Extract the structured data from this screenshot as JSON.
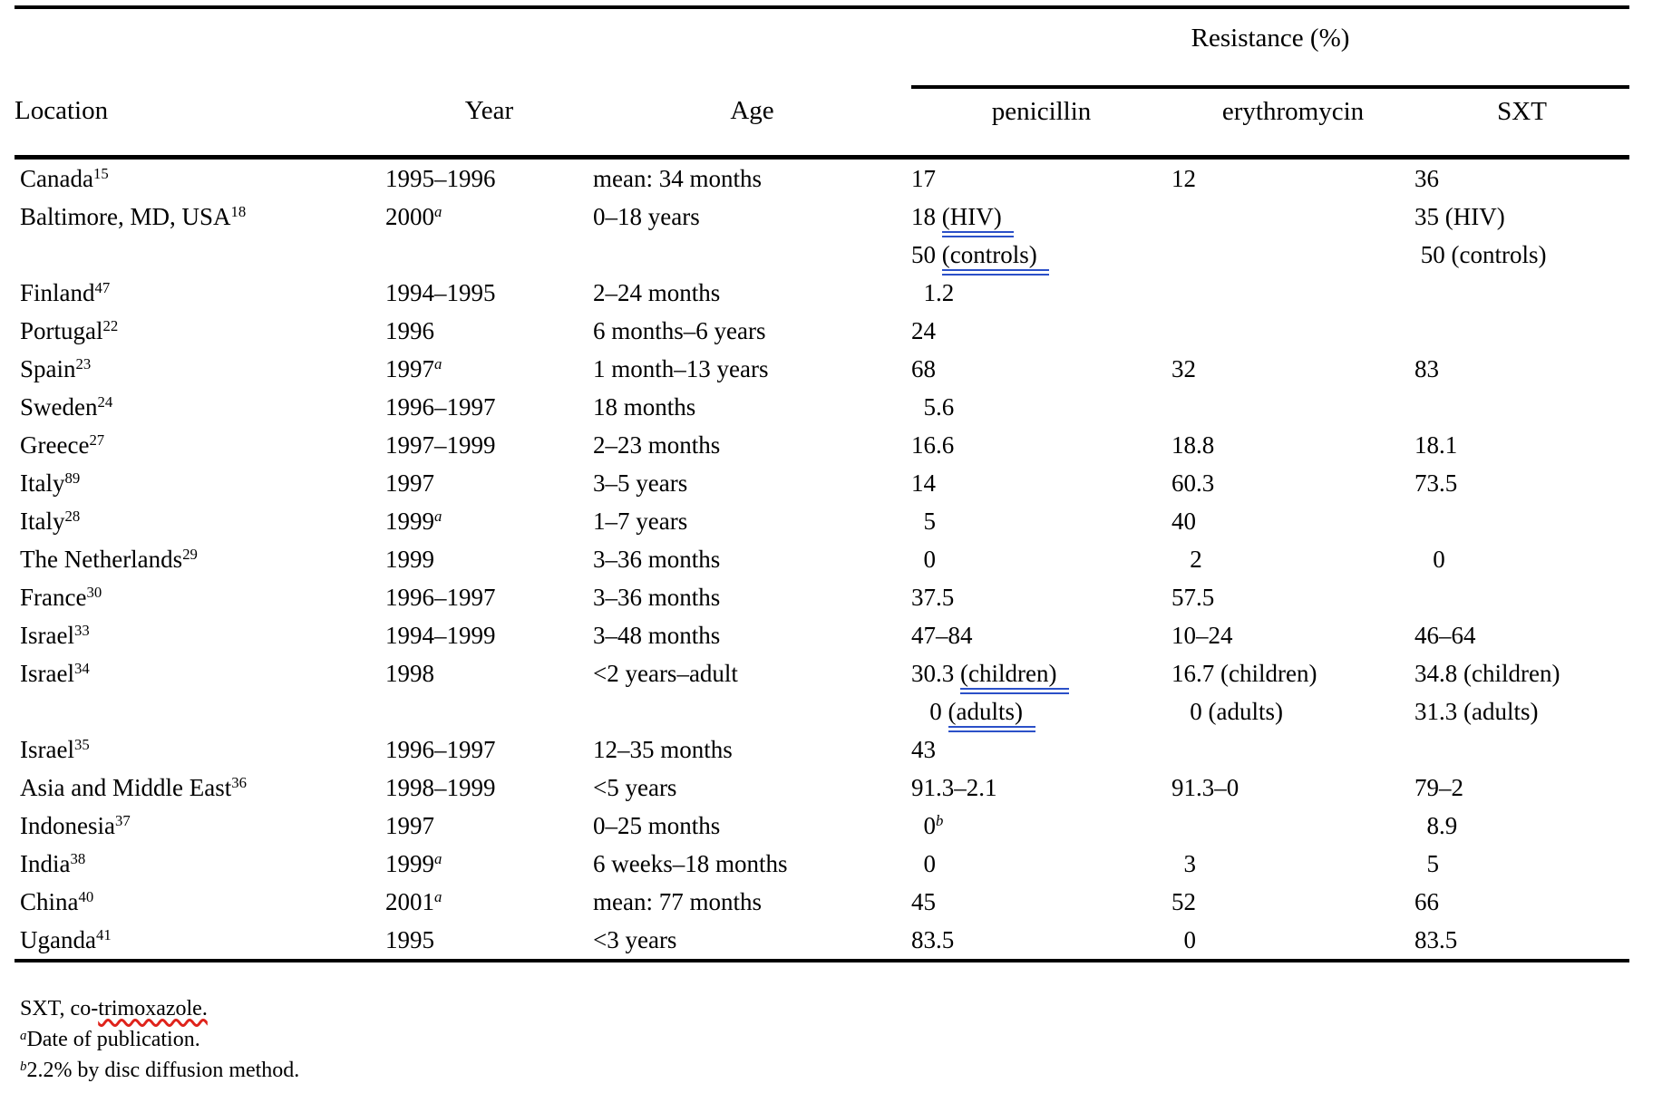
{
  "colors": {
    "grammar_underline_blue": "#2b50c8",
    "spellcheck_wavy_red": "#df231b",
    "text": "#000000",
    "rule": "#000000"
  },
  "table": {
    "spanner": "Resistance (%)",
    "columns": [
      "Location",
      "Year",
      "Age",
      "penicillin",
      "erythromycin",
      "SXT"
    ],
    "rows": [
      {
        "loc": {
          "name": "Canada",
          "ref": "15"
        },
        "year": {
          "text": "1995–1996"
        },
        "age": "mean: 34 months",
        "pen": [
          {
            "pre": "17"
          }
        ],
        "ery": [
          {
            "pre": "12"
          }
        ],
        "sxt": [
          {
            "pre": "36"
          }
        ]
      },
      {
        "loc": {
          "name": "Baltimore, MD, USA",
          "ref": "18"
        },
        "year": {
          "text": "2000",
          "sup": "a"
        },
        "age": "0–18 years",
        "pen": [
          {
            "pre": "18 ",
            "u": "(HIV)"
          },
          {
            "pre": "50 ",
            "u": "(controls)"
          }
        ],
        "ery": [],
        "sxt": [
          {
            "pre": "35 (HIV)"
          },
          {
            "pre": " 50 (controls)"
          }
        ]
      },
      {
        "loc": {
          "name": "Finland",
          "ref": "47"
        },
        "year": {
          "text": "1994–1995"
        },
        "age": "2–24 months",
        "pen": [
          {
            "pre": "  1.2"
          }
        ],
        "ery": [],
        "sxt": []
      },
      {
        "loc": {
          "name": "Portugal",
          "ref": "22"
        },
        "year": {
          "text": "1996"
        },
        "age": "6 months–6 years",
        "pen": [
          {
            "pre": "24"
          }
        ],
        "ery": [],
        "sxt": []
      },
      {
        "loc": {
          "name": "Spain",
          "ref": "23"
        },
        "year": {
          "text": "1997",
          "sup": "a"
        },
        "age": "1 month–13 years",
        "pen": [
          {
            "pre": "68"
          }
        ],
        "ery": [
          {
            "pre": "32"
          }
        ],
        "sxt": [
          {
            "pre": "83"
          }
        ]
      },
      {
        "loc": {
          "name": "Sweden",
          "ref": "24"
        },
        "year": {
          "text": "1996–1997"
        },
        "age": "18 months",
        "pen": [
          {
            "pre": "  5.6"
          }
        ],
        "ery": [],
        "sxt": []
      },
      {
        "loc": {
          "name": "Greece",
          "ref": "27"
        },
        "year": {
          "text": "1997–1999"
        },
        "age": "2–23 months",
        "pen": [
          {
            "pre": "16.6"
          }
        ],
        "ery": [
          {
            "pre": "18.8"
          }
        ],
        "sxt": [
          {
            "pre": "18.1"
          }
        ]
      },
      {
        "loc": {
          "name": "Italy",
          "ref": "89"
        },
        "year": {
          "text": "1997"
        },
        "age": "3–5 years",
        "pen": [
          {
            "pre": "14"
          }
        ],
        "ery": [
          {
            "pre": "60.3"
          }
        ],
        "sxt": [
          {
            "pre": "73.5"
          }
        ]
      },
      {
        "loc": {
          "name": "Italy",
          "ref": "28"
        },
        "year": {
          "text": "1999",
          "sup": "a"
        },
        "age": "1–7 years",
        "pen": [
          {
            "pre": "  5"
          }
        ],
        "ery": [
          {
            "pre": "40"
          }
        ],
        "sxt": []
      },
      {
        "loc": {
          "name": "The Netherlands",
          "ref": "29"
        },
        "year": {
          "text": "1999"
        },
        "age": "3–36 months",
        "pen": [
          {
            "pre": "  0"
          }
        ],
        "ery": [
          {
            "pre": "   2"
          }
        ],
        "sxt": [
          {
            "pre": "   0"
          }
        ]
      },
      {
        "loc": {
          "name": "France",
          "ref": "30"
        },
        "year": {
          "text": "1996–1997"
        },
        "age": "3–36 months",
        "pen": [
          {
            "pre": "37.5"
          }
        ],
        "ery": [
          {
            "pre": "57.5"
          }
        ],
        "sxt": []
      },
      {
        "loc": {
          "name": "Israel",
          "ref": "33"
        },
        "year": {
          "text": "1994–1999"
        },
        "age": "3–48 months",
        "pen": [
          {
            "pre": "47–84"
          }
        ],
        "ery": [
          {
            "pre": "10–24"
          }
        ],
        "sxt": [
          {
            "pre": "46–64"
          }
        ]
      },
      {
        "loc": {
          "name": "Israel",
          "ref": "34"
        },
        "year": {
          "text": "1998"
        },
        "age": "<2 years–adult",
        "pen": [
          {
            "pre": "30.3 ",
            "u": "(children)"
          },
          {
            "pre": "   0 ",
            "u": "(adults)"
          }
        ],
        "ery": [
          {
            "pre": "16.7 (children)"
          },
          {
            "pre": "   0 (adults)"
          }
        ],
        "sxt": [
          {
            "pre": "34.8 (children)"
          },
          {
            "pre": "31.3 (adults)"
          }
        ]
      },
      {
        "loc": {
          "name": "Israel",
          "ref": "35"
        },
        "year": {
          "text": "1996–1997"
        },
        "age": "12–35 months",
        "pen": [
          {
            "pre": "43"
          }
        ],
        "ery": [],
        "sxt": []
      },
      {
        "loc": {
          "name": "Asia and Middle East",
          "ref": "36"
        },
        "year": {
          "text": "1998–1999"
        },
        "age": "<5 years",
        "pen": [
          {
            "pre": "91.3–2.1"
          }
        ],
        "ery": [
          {
            "pre": "91.3–0"
          }
        ],
        "sxt": [
          {
            "pre": "79–2"
          }
        ]
      },
      {
        "loc": {
          "name": "Indonesia",
          "ref": "37"
        },
        "year": {
          "text": "1997"
        },
        "age": "0–25 months",
        "pen": [
          {
            "pre": "  0",
            "sup": "b"
          }
        ],
        "ery": [],
        "sxt": [
          {
            "pre": "  8.9"
          }
        ]
      },
      {
        "loc": {
          "name": "India",
          "ref": "38"
        },
        "year": {
          "text": "1999",
          "sup": "a"
        },
        "age": "6 weeks–18 months",
        "pen": [
          {
            "pre": "  0"
          }
        ],
        "ery": [
          {
            "pre": "  3"
          }
        ],
        "sxt": [
          {
            "pre": "  5"
          }
        ]
      },
      {
        "loc": {
          "name": "China",
          "ref": "40"
        },
        "year": {
          "text": "2001",
          "sup": "a"
        },
        "age": "mean: 77 months",
        "pen": [
          {
            "pre": "45"
          }
        ],
        "ery": [
          {
            "pre": "52"
          }
        ],
        "sxt": [
          {
            "pre": "66"
          }
        ]
      },
      {
        "loc": {
          "name": "Uganda",
          "ref": "41"
        },
        "year": {
          "text": "1995"
        },
        "age": "<3 years",
        "pen": [
          {
            "pre": "83.5"
          }
        ],
        "ery": [
          {
            "pre": "  0"
          }
        ],
        "sxt": [
          {
            "pre": "83.5"
          }
        ]
      }
    ]
  },
  "footnotes": [
    {
      "pre": "SXT, co-",
      "wavy": "trimoxazole."
    },
    {
      "sup": "a",
      "text": "Date of publication."
    },
    {
      "sup": "b",
      "text": "2.2% by disc diffusion method."
    }
  ]
}
